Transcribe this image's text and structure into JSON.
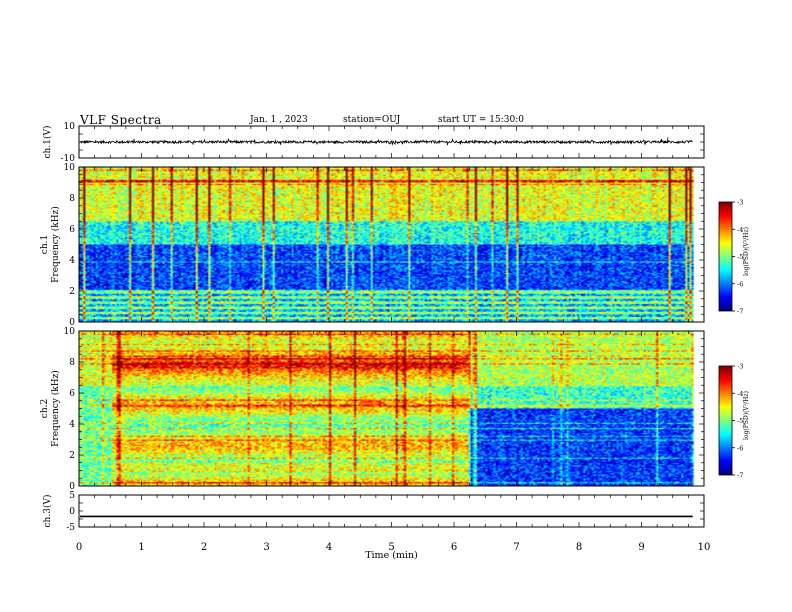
{
  "header": {
    "title": "VLF Spectra",
    "date": "Jan. 1 , 2023",
    "station": "station=OUJ",
    "start": "start UT = 15:30:0"
  },
  "chart_data": {
    "type": "heatmap",
    "xlabel": "Time (min)",
    "xlim": [
      0,
      10
    ],
    "x_ticks": [
      "0",
      "1",
      "2",
      "3",
      "4",
      "5",
      "6",
      "7",
      "8",
      "9",
      "10"
    ],
    "panels": [
      {
        "id": "ch1-waveform",
        "type": "line",
        "ylabel": "ch.1(V)",
        "ylim": [
          -10,
          10
        ],
        "y_ticks": [
          "10",
          "-10"
        ],
        "mean_value": 0,
        "amplitude": 1.5,
        "data_end_min": 9.82
      },
      {
        "id": "ch1-spectrogram",
        "type": "heatmap",
        "ylabel": "ch.1 Frequency (kHz)",
        "ylim": [
          0,
          10
        ],
        "y_ticks": [
          "0",
          "2",
          "4",
          "6",
          "8",
          "10"
        ],
        "data_end_min": 9.82,
        "colorbar": {
          "label": "log(PSD)(V²/Hz)",
          "range": [
            -7,
            -3
          ],
          "ticks": [
            "-3",
            "-4",
            "-5",
            "-6",
            "-7"
          ]
        },
        "bands": [
          {
            "f_lo": 0,
            "f_hi": 2,
            "level": -5.6
          },
          {
            "f_lo": 2,
            "f_hi": 5,
            "level": -6.4
          },
          {
            "f_lo": 5,
            "f_hi": 6.5,
            "level": -5.6
          },
          {
            "f_lo": 6.5,
            "f_hi": 10,
            "level": -4.8
          }
        ]
      },
      {
        "id": "ch2-spectrogram",
        "type": "heatmap",
        "ylabel": "ch.2 Frequency (kHz)",
        "ylim": [
          0,
          10
        ],
        "y_ticks": [
          "0",
          "2",
          "4",
          "6",
          "8",
          "10"
        ],
        "data_end_min": 9.82,
        "colorbar": {
          "label": "log(PSD)(V²/Hz)",
          "range": [
            -7,
            -3
          ],
          "ticks": [
            "-3",
            "-4",
            "-5",
            "-6",
            "-7"
          ]
        },
        "segments": [
          {
            "t_start": 0,
            "t_end": 0.55,
            "mean_level": -5.2
          },
          {
            "t_start": 0.55,
            "t_end": 6.25,
            "mean_level": -4.8
          },
          {
            "t_start": 6.25,
            "t_end": 9.82,
            "mean_level": -5.4
          }
        ],
        "features": [
          {
            "name": "tone-7.8kHz",
            "f": 7.8,
            "t_start": 0.6,
            "t_end": 6.2,
            "level": -3.5
          },
          {
            "name": "tone-5.4kHz",
            "f": 5.4,
            "t_start": 4.5,
            "t_end": 4.85,
            "level": -3.8
          }
        ]
      },
      {
        "id": "ch3-waveform",
        "type": "line",
        "ylabel": "ch.3(V)",
        "ylim": [
          -5,
          5
        ],
        "y_ticks": [
          "5",
          "0",
          "-5"
        ],
        "mean_value": -1.7,
        "data_end_min": 9.82
      }
    ]
  }
}
